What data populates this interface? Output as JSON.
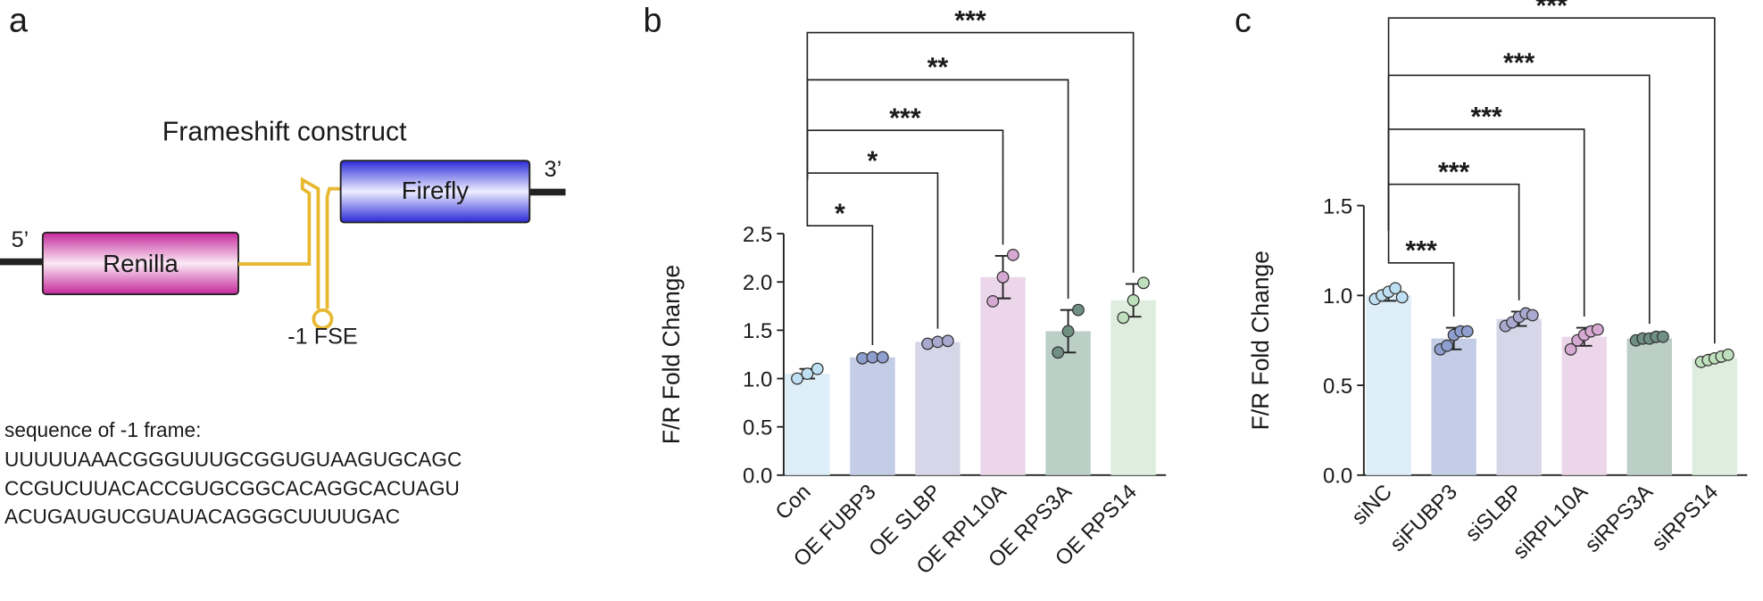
{
  "panel_labels": [
    "a",
    "b",
    "c"
  ],
  "diagram": {
    "title": "Frameshift construct",
    "five_prime": "5’",
    "three_prime": "3’",
    "renilla": "Renilla",
    "firefly": "Firefly",
    "fse": "-1 FSE",
    "sequence_title": "sequence of -1 frame:",
    "sequence": [
      "UUUUUAAACGGGUUUGCGGUGUAAGUGCAGC",
      "CCGUCUUACACCGUGCGGCACAGGCACUAGU",
      "ACUGAUGUCGUAUACAGGGCUUUUGAC"
    ]
  },
  "chart_data": [
    {
      "type": "bar",
      "ylabel": "F/R Fold Change",
      "categories": [
        "Con",
        "OE FUBP3",
        "OE SLBP",
        "OE RPL10A",
        "OE RPS3A",
        "OE RPS14"
      ],
      "values": [
        1.05,
        1.22,
        1.38,
        2.05,
        1.49,
        1.81
      ],
      "errors": [
        0.05,
        0.01,
        0.02,
        0.22,
        0.22,
        0.17
      ],
      "points": [
        [
          1.0,
          1.05,
          1.1
        ],
        [
          1.21,
          1.22,
          1.22
        ],
        [
          1.36,
          1.38,
          1.39
        ],
        [
          1.8,
          2.05,
          2.28
        ],
        [
          1.27,
          1.49,
          1.71
        ],
        [
          1.63,
          1.81,
          1.99
        ]
      ],
      "colors": [
        "#ddeef8",
        "#c3cde6",
        "#d6d6e8",
        "#ecd6ea",
        "#bccfc7",
        "#deeddd"
      ],
      "point_colors": [
        "#bfe0f2",
        "#8e9fcf",
        "#a9a9d0",
        "#d6a9d2",
        "#6f8f83",
        "#bfe0bd"
      ],
      "significance": [
        null,
        "*",
        "*",
        "***",
        "**",
        "***"
      ],
      "ylim": [
        0,
        2.5
      ],
      "yticks": [
        {
          "value": 0,
          "label": "0.0"
        },
        0.5,
        {
          "value": 1,
          "label": "1.0"
        },
        1.5,
        {
          "value": 2,
          "label": "2.0"
        },
        2.5
      ]
    },
    {
      "type": "bar",
      "ylabel": "F/R Fold Change",
      "categories": [
        "siNC",
        "siFUBP3",
        "siSLBP",
        "siRPL10A",
        "siRPS3A",
        "siRPS14"
      ],
      "values": [
        1.0,
        0.76,
        0.87,
        0.77,
        0.76,
        0.65
      ],
      "errors": [
        0.03,
        0.06,
        0.04,
        0.05,
        0.02,
        0.02
      ],
      "points": [
        [
          0.98,
          1.0,
          1.02,
          1.04,
          0.99
        ],
        [
          0.7,
          0.72,
          0.78,
          0.8,
          0.8
        ],
        [
          0.83,
          0.85,
          0.88,
          0.9,
          0.89
        ],
        [
          0.7,
          0.75,
          0.78,
          0.8,
          0.81
        ],
        [
          0.75,
          0.76,
          0.76,
          0.77,
          0.77
        ],
        [
          0.63,
          0.64,
          0.65,
          0.66,
          0.67
        ]
      ],
      "colors": [
        "#ddeef8",
        "#c3cde6",
        "#d6d6e8",
        "#ecd6ea",
        "#bccfc7",
        "#deeddd"
      ],
      "point_colors": [
        "#bfe0f2",
        "#8e9fcf",
        "#a9a9d0",
        "#d6a9d2",
        "#6f8f83",
        "#bfe0bd"
      ],
      "significance": [
        null,
        "***",
        "***",
        "***",
        "***",
        "***"
      ],
      "ylim": [
        0,
        1.5
      ],
      "yticks": [
        {
          "value": 0,
          "label": "0.0"
        },
        0.5,
        {
          "value": 1,
          "label": "1.0"
        },
        1.5
      ]
    }
  ]
}
